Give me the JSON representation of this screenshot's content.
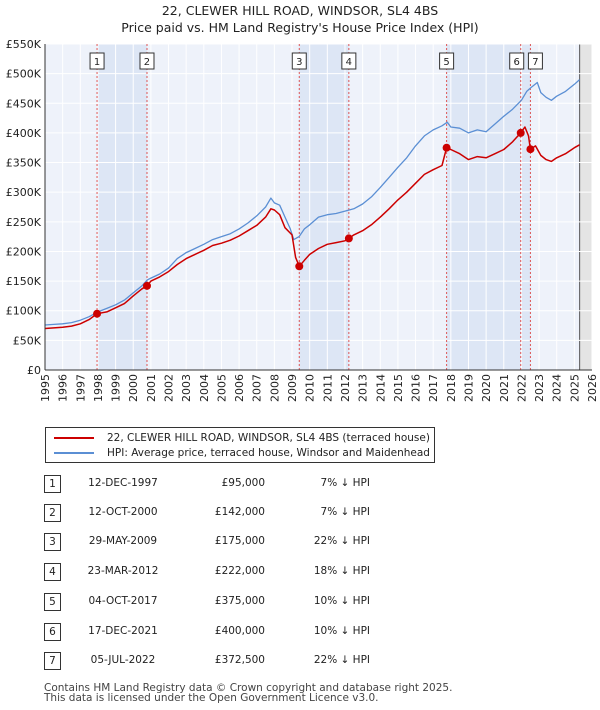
{
  "title_line1": "22, CLEWER HILL ROAD, WINDSOR, SL4 4BS",
  "title_line2": "Price paid vs. HM Land Registry's House Price Index (HPI)",
  "chart_data": {
    "type": "line",
    "title": "22, CLEWER HILL ROAD, WINDSOR, SL4 4BS — Price paid vs. HM Land Registry's House Price Index (HPI)",
    "xlim": [
      1995,
      2026
    ],
    "ylim": [
      0,
      550000
    ],
    "x_ticks": [
      1995,
      1996,
      1997,
      1998,
      1999,
      2000,
      2001,
      2002,
      2003,
      2004,
      2005,
      2006,
      2007,
      2008,
      2009,
      2010,
      2011,
      2012,
      2013,
      2014,
      2015,
      2016,
      2017,
      2018,
      2019,
      2020,
      2021,
      2022,
      2023,
      2024,
      2025,
      2026
    ],
    "y_ticks": [
      {
        "value": 0,
        "label": "£0"
      },
      {
        "value": 50000,
        "label": "£50K"
      },
      {
        "value": 100000,
        "label": "£100K"
      },
      {
        "value": 150000,
        "label": "£150K"
      },
      {
        "value": 200000,
        "label": "£200K"
      },
      {
        "value": 250000,
        "label": "£250K"
      },
      {
        "value": 300000,
        "label": "£300K"
      },
      {
        "value": 350000,
        "label": "£350K"
      },
      {
        "value": 400000,
        "label": "£400K"
      },
      {
        "value": 450000,
        "label": "£450K"
      },
      {
        "value": 500000,
        "label": "£500K"
      },
      {
        "value": 550000,
        "label": "£550K"
      }
    ],
    "series": [
      {
        "name": "HPI: Average price, terraced house, Windsor and Maidenhead",
        "color": "#5b8fd4",
        "points": [
          [
            1995.0,
            76000
          ],
          [
            1995.5,
            77000
          ],
          [
            1996.0,
            78000
          ],
          [
            1996.5,
            80000
          ],
          [
            1997.0,
            84000
          ],
          [
            1997.5,
            90000
          ],
          [
            1998.0,
            98000
          ],
          [
            1998.5,
            104000
          ],
          [
            1999.0,
            110000
          ],
          [
            1999.5,
            118000
          ],
          [
            2000.0,
            130000
          ],
          [
            2000.5,
            142000
          ],
          [
            2000.8,
            152000
          ],
          [
            2001.0,
            155000
          ],
          [
            2001.5,
            162000
          ],
          [
            2002.0,
            172000
          ],
          [
            2002.5,
            188000
          ],
          [
            2003.0,
            198000
          ],
          [
            2003.5,
            205000
          ],
          [
            2004.0,
            212000
          ],
          [
            2004.5,
            220000
          ],
          [
            2005.0,
            225000
          ],
          [
            2005.5,
            230000
          ],
          [
            2006.0,
            238000
          ],
          [
            2006.5,
            248000
          ],
          [
            2007.0,
            260000
          ],
          [
            2007.5,
            275000
          ],
          [
            2007.8,
            290000
          ],
          [
            2008.0,
            282000
          ],
          [
            2008.3,
            278000
          ],
          [
            2008.6,
            258000
          ],
          [
            2008.9,
            238000
          ],
          [
            2009.1,
            220000
          ],
          [
            2009.4,
            225000
          ],
          [
            2009.7,
            238000
          ],
          [
            2010.0,
            245000
          ],
          [
            2010.5,
            258000
          ],
          [
            2011.0,
            262000
          ],
          [
            2011.5,
            264000
          ],
          [
            2012.0,
            268000
          ],
          [
            2012.5,
            272000
          ],
          [
            2013.0,
            280000
          ],
          [
            2013.5,
            292000
          ],
          [
            2014.0,
            308000
          ],
          [
            2014.5,
            325000
          ],
          [
            2015.0,
            342000
          ],
          [
            2015.5,
            358000
          ],
          [
            2016.0,
            378000
          ],
          [
            2016.5,
            395000
          ],
          [
            2017.0,
            405000
          ],
          [
            2017.5,
            412000
          ],
          [
            2017.8,
            418000
          ],
          [
            2018.0,
            410000
          ],
          [
            2018.5,
            408000
          ],
          [
            2019.0,
            400000
          ],
          [
            2019.5,
            405000
          ],
          [
            2020.0,
            402000
          ],
          [
            2020.5,
            415000
          ],
          [
            2021.0,
            428000
          ],
          [
            2021.5,
            440000
          ],
          [
            2022.0,
            455000
          ],
          [
            2022.3,
            470000
          ],
          [
            2022.6,
            478000
          ],
          [
            2022.9,
            485000
          ],
          [
            2023.1,
            468000
          ],
          [
            2023.4,
            460000
          ],
          [
            2023.7,
            455000
          ],
          [
            2024.0,
            462000
          ],
          [
            2024.5,
            470000
          ],
          [
            2025.0,
            482000
          ],
          [
            2025.3,
            490000
          ]
        ]
      },
      {
        "name": "22, CLEWER HILL ROAD, WINDSOR, SL4 4BS (terraced house)",
        "color": "#cc0000",
        "points": [
          [
            1995.0,
            70000
          ],
          [
            1995.5,
            71000
          ],
          [
            1996.0,
            72000
          ],
          [
            1996.5,
            74000
          ],
          [
            1997.0,
            78000
          ],
          [
            1997.5,
            85000
          ],
          [
            1997.95,
            95000
          ],
          [
            1998.5,
            98000
          ],
          [
            1999.0,
            105000
          ],
          [
            1999.5,
            112000
          ],
          [
            2000.0,
            125000
          ],
          [
            2000.5,
            137000
          ],
          [
            2000.78,
            142000
          ],
          [
            2001.0,
            150000
          ],
          [
            2001.5,
            157000
          ],
          [
            2002.0,
            166000
          ],
          [
            2002.5,
            178000
          ],
          [
            2003.0,
            188000
          ],
          [
            2003.5,
            195000
          ],
          [
            2004.0,
            202000
          ],
          [
            2004.5,
            210000
          ],
          [
            2005.0,
            214000
          ],
          [
            2005.5,
            219000
          ],
          [
            2006.0,
            226000
          ],
          [
            2006.5,
            235000
          ],
          [
            2007.0,
            244000
          ],
          [
            2007.5,
            258000
          ],
          [
            2007.8,
            272000
          ],
          [
            2008.0,
            270000
          ],
          [
            2008.3,
            262000
          ],
          [
            2008.6,
            240000
          ],
          [
            2009.0,
            228000
          ],
          [
            2009.2,
            190000
          ],
          [
            2009.41,
            175000
          ],
          [
            2009.7,
            185000
          ],
          [
            2010.0,
            195000
          ],
          [
            2010.5,
            205000
          ],
          [
            2011.0,
            212000
          ],
          [
            2011.5,
            215000
          ],
          [
            2012.0,
            218000
          ],
          [
            2012.22,
            222000
          ],
          [
            2012.5,
            228000
          ],
          [
            2013.0,
            235000
          ],
          [
            2013.5,
            245000
          ],
          [
            2014.0,
            258000
          ],
          [
            2014.5,
            272000
          ],
          [
            2015.0,
            287000
          ],
          [
            2015.5,
            300000
          ],
          [
            2016.0,
            315000
          ],
          [
            2016.5,
            330000
          ],
          [
            2017.0,
            338000
          ],
          [
            2017.5,
            345000
          ],
          [
            2017.76,
            375000
          ],
          [
            2018.0,
            372000
          ],
          [
            2018.5,
            365000
          ],
          [
            2019.0,
            355000
          ],
          [
            2019.5,
            360000
          ],
          [
            2020.0,
            358000
          ],
          [
            2020.5,
            365000
          ],
          [
            2021.0,
            372000
          ],
          [
            2021.5,
            385000
          ],
          [
            2021.96,
            400000
          ],
          [
            2022.2,
            410000
          ],
          [
            2022.4,
            395000
          ],
          [
            2022.51,
            372500
          ],
          [
            2022.8,
            378000
          ],
          [
            2023.1,
            362000
          ],
          [
            2023.4,
            355000
          ],
          [
            2023.7,
            352000
          ],
          [
            2024.0,
            358000
          ],
          [
            2024.5,
            365000
          ],
          [
            2025.0,
            375000
          ],
          [
            2025.3,
            380000
          ]
        ]
      }
    ],
    "sales": [
      {
        "n": "1",
        "date": "12-DEC-1997",
        "x": 1997.95,
        "price": 95000
      },
      {
        "n": "2",
        "date": "12-OCT-2000",
        "x": 2000.78,
        "price": 142000
      },
      {
        "n": "3",
        "date": "29-MAY-2009",
        "x": 2009.41,
        "price": 175000
      },
      {
        "n": "4",
        "date": "23-MAR-2012",
        "x": 2012.22,
        "price": 222000
      },
      {
        "n": "5",
        "date": "04-OCT-2017",
        "x": 2017.76,
        "price": 375000
      },
      {
        "n": "6",
        "date": "17-DEC-2021",
        "x": 2021.96,
        "price": 400000
      },
      {
        "n": "7",
        "date": "05-JUL-2022",
        "x": 2022.51,
        "price": 372500
      }
    ]
  },
  "legend": {
    "property_label": "22, CLEWER HILL ROAD, WINDSOR, SL4 4BS (terraced house)",
    "hpi_label": "HPI: Average price, terraced house, Windsor and Maidenhead"
  },
  "sales_table": [
    {
      "n": "1",
      "date": "12-DEC-1997",
      "price": "£95,000",
      "hpi": "7% ↓ HPI"
    },
    {
      "n": "2",
      "date": "12-OCT-2000",
      "price": "£142,000",
      "hpi": "7% ↓ HPI"
    },
    {
      "n": "3",
      "date": "29-MAY-2009",
      "price": "£175,000",
      "hpi": "22% ↓ HPI"
    },
    {
      "n": "4",
      "date": "23-MAR-2012",
      "price": "£222,000",
      "hpi": "18% ↓ HPI"
    },
    {
      "n": "5",
      "date": "04-OCT-2017",
      "price": "£375,000",
      "hpi": "10% ↓ HPI"
    },
    {
      "n": "6",
      "date": "17-DEC-2021",
      "price": "£400,000",
      "hpi": "10% ↓ HPI"
    },
    {
      "n": "7",
      "date": "05-JUL-2022",
      "price": "£372,500",
      "hpi": "22% ↓ HPI"
    }
  ],
  "footer": {
    "line1": "Contains HM Land Registry data © Crown copyright and database right 2025.",
    "line2": "This data is licensed under the Open Government Licence v3.0."
  }
}
